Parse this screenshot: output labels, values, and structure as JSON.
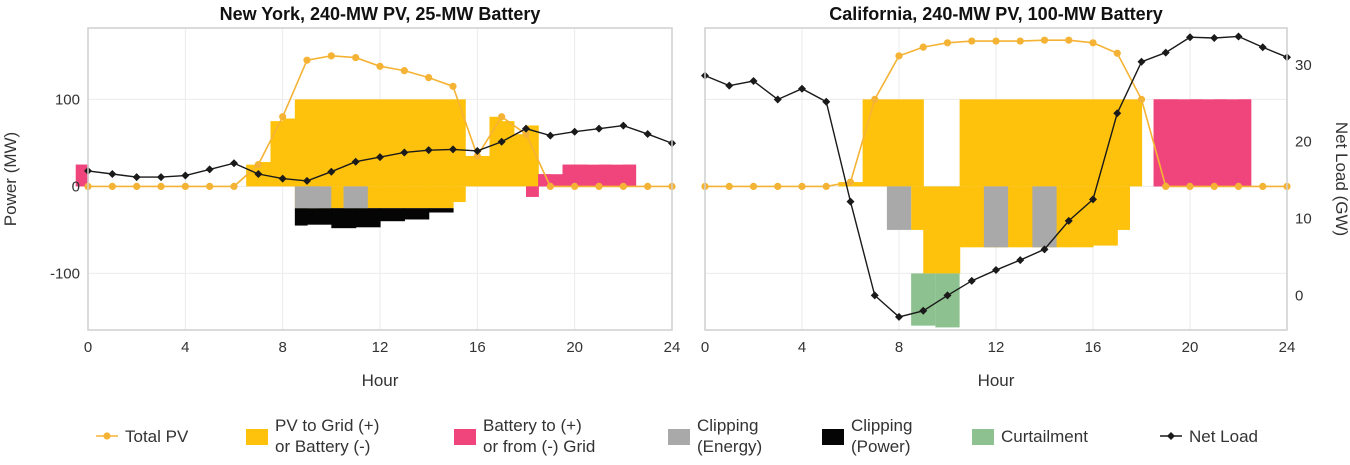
{
  "chart_data": {
    "type": "bar",
    "shared": {
      "xlabel": "Hour",
      "xlim": [
        0,
        24
      ],
      "xticks": [
        0,
        4,
        8,
        12,
        16,
        20,
        24
      ],
      "ylabel_left": "Power (MW)",
      "ylim_left": [
        -165,
        182
      ],
      "yticks_left": [
        -100,
        0,
        100
      ],
      "ylabel_right": "Net Load (GW)",
      "ylim_right": [
        -4.5,
        34.8
      ],
      "yticks_right": [
        0,
        10,
        20,
        30
      ],
      "grid": true
    },
    "panels": [
      {
        "title": "New York, 240-MW PV, 25-MW Battery",
        "pv_to_grid": [
          [
            6.5,
            25
          ],
          [
            7,
            28
          ],
          [
            7.5,
            75
          ],
          [
            8,
            78
          ],
          [
            8.5,
            100
          ],
          [
            9,
            100
          ],
          [
            10,
            100
          ],
          [
            11,
            100
          ],
          [
            12,
            100
          ],
          [
            13,
            100
          ],
          [
            14,
            100
          ],
          [
            15,
            100
          ],
          [
            15.5,
            35
          ],
          [
            16,
            35
          ],
          [
            16.5,
            80
          ],
          [
            17,
            75
          ],
          [
            17.5,
            60
          ],
          [
            18,
            70
          ]
        ],
        "pv_to_battery": [
          [
            8.5,
            -25
          ],
          [
            9,
            -25
          ],
          [
            10,
            -25
          ],
          [
            11,
            -25
          ],
          [
            12,
            -25
          ],
          [
            13,
            -25
          ],
          [
            14,
            -25
          ],
          [
            15,
            -18
          ]
        ],
        "battery_grid": [
          [
            -0.5,
            25
          ],
          [
            18,
            -12
          ],
          [
            18.5,
            14
          ],
          [
            19.5,
            25
          ],
          [
            20,
            25
          ],
          [
            21,
            25
          ],
          [
            22,
            25
          ]
        ],
        "clipping_energy": [
          [
            8.5,
            -25
          ],
          [
            9,
            -25
          ],
          [
            10.5,
            -25
          ]
        ],
        "clipping_power": [
          [
            8.5,
            -45
          ],
          [
            9,
            -44
          ],
          [
            10,
            -48
          ],
          [
            11,
            -47
          ],
          [
            12,
            -40
          ],
          [
            13,
            -38
          ],
          [
            14,
            -30
          ]
        ],
        "curtailment": [],
        "total_pv": [
          [
            0,
            0
          ],
          [
            1,
            0
          ],
          [
            2,
            0
          ],
          [
            3,
            0
          ],
          [
            4,
            0
          ],
          [
            5,
            0
          ],
          [
            6,
            0
          ],
          [
            7,
            25
          ],
          [
            8,
            80
          ],
          [
            9,
            145
          ],
          [
            10,
            150
          ],
          [
            11,
            148
          ],
          [
            12,
            138
          ],
          [
            13,
            133
          ],
          [
            14,
            125
          ],
          [
            15,
            115
          ],
          [
            16,
            35
          ],
          [
            17,
            80
          ],
          [
            18,
            60
          ],
          [
            19,
            0
          ],
          [
            20,
            0
          ],
          [
            21,
            0
          ],
          [
            22,
            0
          ],
          [
            23,
            0
          ],
          [
            24,
            0
          ]
        ],
        "net_load": [
          [
            0,
            16.2
          ],
          [
            1,
            15.8
          ],
          [
            2,
            15.4
          ],
          [
            3,
            15.4
          ],
          [
            4,
            15.6
          ],
          [
            5,
            16.4
          ],
          [
            6,
            17.2
          ],
          [
            7,
            15.8
          ],
          [
            8,
            15.2
          ],
          [
            9,
            14.9
          ],
          [
            10,
            16.1
          ],
          [
            11,
            17.4
          ],
          [
            12,
            18.0
          ],
          [
            13,
            18.6
          ],
          [
            14,
            18.9
          ],
          [
            15,
            19.0
          ],
          [
            16,
            18.8
          ],
          [
            17,
            20.0
          ],
          [
            18,
            21.7
          ],
          [
            19,
            20.8
          ],
          [
            20,
            21.3
          ],
          [
            21,
            21.7
          ],
          [
            22,
            22.1
          ],
          [
            23,
            21.0
          ],
          [
            24,
            19.8
          ]
        ]
      },
      {
        "title": "California, 240-MW PV, 100-MW Battery",
        "pv_to_grid": [
          [
            5.5,
            5
          ],
          [
            6,
            5
          ],
          [
            6.5,
            100
          ],
          [
            7,
            100
          ],
          [
            8,
            100
          ],
          [
            10.5,
            100
          ],
          [
            11,
            100
          ],
          [
            12,
            100
          ],
          [
            13,
            100
          ],
          [
            14,
            100
          ],
          [
            15,
            100
          ],
          [
            16,
            100
          ],
          [
            17,
            100
          ],
          [
            17.5,
            100
          ]
        ],
        "pv_to_battery": [
          [
            8.5,
            -50
          ],
          [
            9,
            -100
          ],
          [
            10,
            -100
          ],
          [
            10.5,
            -70
          ],
          [
            11,
            -70
          ],
          [
            12,
            -70
          ],
          [
            13,
            -70
          ],
          [
            14,
            -70
          ],
          [
            15,
            -70
          ],
          [
            16,
            -68
          ],
          [
            17,
            -50
          ]
        ],
        "battery_grid": [
          [
            18.5,
            100
          ],
          [
            19,
            100
          ],
          [
            20,
            100
          ],
          [
            21,
            100
          ],
          [
            22,
            100
          ]
        ],
        "clipping_energy": [
          [
            7.5,
            -50
          ],
          [
            11.5,
            -70
          ],
          [
            13.5,
            -70
          ]
        ],
        "clipping_power": [],
        "curtailment": [
          [
            8.5,
            -160
          ],
          [
            9.5,
            -162
          ]
        ],
        "total_pv": [
          [
            0,
            0
          ],
          [
            1,
            0
          ],
          [
            2,
            0
          ],
          [
            3,
            0
          ],
          [
            4,
            0
          ],
          [
            5,
            0
          ],
          [
            6,
            5
          ],
          [
            7,
            100
          ],
          [
            8,
            150
          ],
          [
            9,
            160
          ],
          [
            10,
            165
          ],
          [
            11,
            167
          ],
          [
            12,
            167
          ],
          [
            13,
            167
          ],
          [
            14,
            168
          ],
          [
            15,
            168
          ],
          [
            16,
            165
          ],
          [
            17,
            153
          ],
          [
            18,
            100
          ],
          [
            19,
            0
          ],
          [
            20,
            0
          ],
          [
            21,
            0
          ],
          [
            22,
            0
          ],
          [
            23,
            0
          ],
          [
            24,
            0
          ]
        ],
        "net_load": [
          [
            0,
            28.6
          ],
          [
            1,
            27.3
          ],
          [
            2,
            27.9
          ],
          [
            3,
            25.5
          ],
          [
            4,
            26.9
          ],
          [
            5,
            25.2
          ],
          [
            6,
            12.2
          ],
          [
            7,
            0.0
          ],
          [
            8,
            -2.8
          ],
          [
            9,
            -2.0
          ],
          [
            10,
            0.0
          ],
          [
            11,
            1.9
          ],
          [
            12,
            3.3
          ],
          [
            13,
            4.6
          ],
          [
            14,
            6.0
          ],
          [
            15,
            9.7
          ],
          [
            16,
            12.5
          ],
          [
            17,
            23.7
          ],
          [
            18,
            30.4
          ],
          [
            19,
            31.6
          ],
          [
            20,
            33.6
          ],
          [
            21,
            33.5
          ],
          [
            22,
            33.7
          ],
          [
            23,
            32.3
          ],
          [
            24,
            31.0
          ]
        ]
      }
    ],
    "legend": [
      {
        "key": "total_pv",
        "label_lines": [
          "Total PV"
        ],
        "color": "#f5b335",
        "kind": "line-dot"
      },
      {
        "key": "pv_to_grid",
        "label_lines": [
          "PV to Grid (+)",
          "or Battery (-)"
        ],
        "color": "#fec20d",
        "kind": "patch"
      },
      {
        "key": "battery_grid",
        "label_lines": [
          "Battery to (+)",
          "or from (-) Grid"
        ],
        "color": "#f0457c",
        "kind": "patch"
      },
      {
        "key": "clipping_energy",
        "label_lines": [
          "Clipping",
          "(Energy)"
        ],
        "color": "#a9a9a9",
        "kind": "patch"
      },
      {
        "key": "clipping_power",
        "label_lines": [
          "Clipping",
          "(Power)"
        ],
        "color": "#050505",
        "kind": "patch"
      },
      {
        "key": "curtailment",
        "label_lines": [
          "Curtailment"
        ],
        "color": "#8dc18f",
        "kind": "patch"
      },
      {
        "key": "net_load",
        "label_lines": [
          "Net Load"
        ],
        "color": "#1a1a1a",
        "kind": "line-diamond"
      }
    ]
  }
}
